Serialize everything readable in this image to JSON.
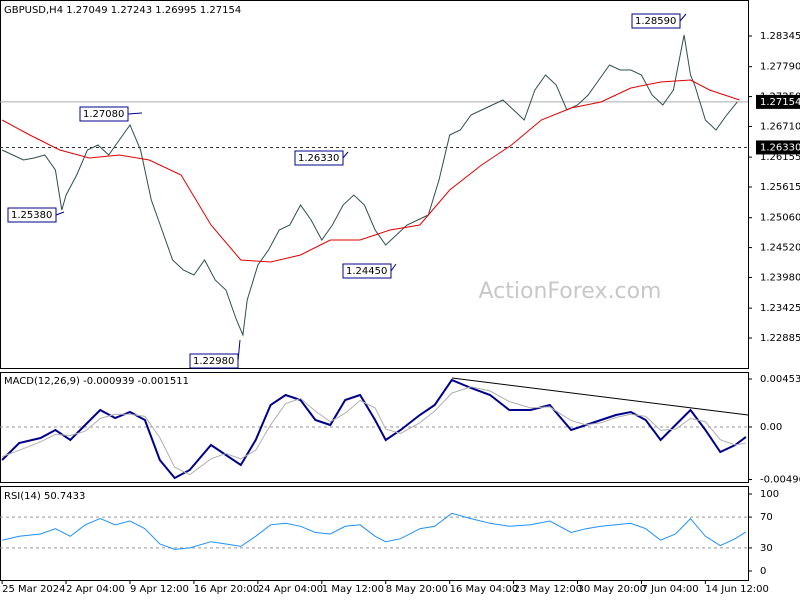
{
  "chart_data": [
    {
      "type": "line",
      "title": "GBPUSD,H4  1.27049 1.27243 1.26995 1.27154",
      "watermark": "ActionForex.com",
      "xlim": [
        -1,
        350
      ],
      "ylim": [
        1.22343,
        1.28996
      ],
      "yticks": [
        {
          "value": 1.28345,
          "label": "1.28345"
        },
        {
          "value": 1.2779,
          "label": "1.27790"
        },
        {
          "value": 1.2725,
          "label": "1.27250"
        },
        {
          "value": 1.2671,
          "label": "1.26710"
        },
        {
          "value": 1.26155,
          "label": "1.26155"
        },
        {
          "value": 1.25615,
          "label": "1.25615"
        },
        {
          "value": 1.2506,
          "label": "1.25060"
        },
        {
          "value": 1.2452,
          "label": "1.24520"
        },
        {
          "value": 1.2398,
          "label": "1.23980"
        },
        {
          "value": 1.23425,
          "label": "1.23425"
        },
        {
          "value": 1.22885,
          "label": "1.22885"
        }
      ],
      "price_lines": [
        {
          "value": 1.27154,
          "label": "1.27154",
          "style": "solid"
        },
        {
          "value": 1.2633,
          "label": "1.26330",
          "style": "dashed"
        }
      ],
      "annotations": [
        "1.28590",
        "1.27080",
        "1.26330",
        "1.25380",
        "1.24450",
        "1.22980"
      ],
      "series": [
        {
          "name": "GBPUSD",
          "color": "#2f4f4f",
          "x": [
            0,
            5,
            10,
            15,
            20,
            25,
            28,
            30,
            35,
            40,
            45,
            50,
            55,
            60,
            65,
            70,
            75,
            80,
            85,
            90,
            95,
            100,
            105,
            110,
            113,
            115,
            120,
            125,
            130,
            135,
            140,
            145,
            150,
            155,
            160,
            165,
            170,
            175,
            180,
            185,
            190,
            195,
            200,
            205,
            210,
            215,
            220,
            225,
            230,
            235,
            240,
            245,
            250,
            255,
            260,
            265,
            270,
            275,
            280,
            285,
            290,
            295,
            300,
            305,
            310,
            315,
            320,
            323,
            325,
            330,
            335,
            340,
            345
          ],
          "values": [
            1.26284,
            1.26194,
            1.26103,
            1.26139,
            1.26194,
            1.25922,
            1.25199,
            1.2547,
            1.25832,
            1.26284,
            1.26374,
            1.26194,
            1.26465,
            1.26736,
            1.26284,
            1.2538,
            1.24838,
            1.24295,
            1.24115,
            1.24024,
            1.24295,
            1.23934,
            1.23753,
            1.2321,
            1.22939,
            1.23572,
            1.24205,
            1.24476,
            1.24838,
            1.24928,
            1.2529,
            1.25018,
            1.24657,
            1.24928,
            1.2529,
            1.2547,
            1.2529,
            1.24838,
            1.24566,
            1.24747,
            1.24928,
            1.25018,
            1.25109,
            1.25742,
            1.26555,
            1.26646,
            1.26917,
            1.27007,
            1.27098,
            1.27188,
            1.27007,
            1.26826,
            1.27369,
            1.2764,
            1.27459,
            1.27007,
            1.27098,
            1.27278,
            1.2755,
            1.27821,
            1.27731,
            1.27731,
            1.2764,
            1.27278,
            1.27098,
            1.27369,
            1.28363,
            1.2764,
            1.27459,
            1.26826,
            1.26646,
            1.26917,
            1.27154
          ]
        },
        {
          "name": "MA",
          "color": "#e00000",
          "x": [
            0,
            13,
            27,
            41,
            55,
            69,
            84,
            98,
            112,
            126,
            140,
            154,
            168,
            182,
            196,
            210,
            225,
            239,
            253,
            267,
            281,
            295,
            309,
            323,
            332,
            346
          ],
          "values": [
            1.26826,
            1.26555,
            1.26284,
            1.26139,
            1.26194,
            1.26103,
            1.25832,
            1.24928,
            1.24295,
            1.24259,
            1.24386,
            1.24657,
            1.24657,
            1.24838,
            1.24928,
            1.25561,
            1.26013,
            1.26374,
            1.26826,
            1.27043,
            1.27152,
            1.27405,
            1.27514,
            1.2755,
            1.27369,
            1.27188
          ]
        }
      ]
    },
    {
      "type": "line",
      "title": "MACD(12,26,9) -0.000939 -0.001511",
      "xlim": [
        -1,
        350
      ],
      "ylim": [
        -0.005194,
        0.005194
      ],
      "yticks": [
        0.004533,
        {
          "value": 0,
          "label": "0.00"
        },
        -0.00496
      ],
      "dashed_levels": [
        0
      ],
      "series": [
        {
          "name": "MACD",
          "color": "#00008b",
          "width": 2,
          "x": [
            0,
            8,
            18,
            25,
            32,
            39,
            46,
            53,
            60,
            67,
            74,
            81,
            88,
            98,
            105,
            112,
            119,
            126,
            133,
            140,
            147,
            154,
            161,
            168,
            175,
            180,
            187,
            196,
            203,
            211,
            220,
            229,
            238,
            248,
            257,
            267,
            274,
            281,
            288,
            295,
            302,
            309,
            316,
            323,
            330,
            337,
            344,
            349
          ],
          "values": [
            -0.00312,
            -0.00151,
            -0.00104,
            -0.00028,
            -0.00123,
            0.00019,
            0.00161,
            0.00085,
            0.00142,
            0.00066,
            -0.00312,
            -0.00482,
            -0.00406,
            -0.0017,
            -0.00264,
            -0.00359,
            -0.00123,
            0.00208,
            0.00302,
            0.00255,
            0.00066,
            0.00019,
            0.00255,
            0.00302,
            0.00066,
            -0.00123,
            -0.00028,
            0.00113,
            0.00208,
            0.00444,
            0.00368,
            0.00302,
            0.00161,
            0.00161,
            0.00208,
            -0.00028,
            0.00019,
            0.00066,
            0.00113,
            0.00142,
            0.00066,
            -0.00123,
            0.00019,
            0.00161,
            -0.00028,
            -0.00236,
            -0.0017,
            -0.000939
          ]
        },
        {
          "name": "Signal",
          "color": "#b0b0b0",
          "width": 1,
          "x": [
            0,
            8,
            18,
            25,
            32,
            39,
            46,
            53,
            60,
            67,
            74,
            81,
            88,
            98,
            105,
            112,
            119,
            126,
            133,
            140,
            147,
            154,
            161,
            168,
            175,
            180,
            187,
            196,
            203,
            211,
            220,
            229,
            238,
            248,
            257,
            267,
            274,
            281,
            288,
            295,
            302,
            309,
            316,
            323,
            330,
            337,
            344,
            349
          ],
          "values": [
            -0.0028,
            -0.0022,
            -0.0014,
            -0.0007,
            -0.0008,
            -0.0004,
            0.0008,
            0.0012,
            0.0012,
            0.001,
            -0.001,
            -0.0038,
            -0.0045,
            -0.003,
            -0.0025,
            -0.003,
            -0.0022,
            0.0002,
            0.0022,
            0.0027,
            0.0015,
            0.0005,
            0.0013,
            0.0025,
            0.0018,
            -0.0002,
            -0.0006,
            0.0004,
            0.0015,
            0.0032,
            0.0038,
            0.0034,
            0.0024,
            0.0018,
            0.0019,
            0.0006,
            0.0002,
            0.0004,
            0.0009,
            0.0012,
            0.001,
            -0.0003,
            -0.0002,
            0.0008,
            0.0005,
            -0.0012,
            -0.0017,
            -0.001511
          ]
        }
      ]
    },
    {
      "type": "line",
      "title": "RSI(14) 50.7433",
      "xlim": [
        -1,
        350
      ],
      "ylim": [
        -11.7,
        110.4
      ],
      "yticks": [
        100,
        70,
        30,
        0
      ],
      "dashed_levels": [
        70,
        30
      ],
      "xticks": [
        {
          "value": 0,
          "label": "25 Mar 2024"
        },
        {
          "value": 30,
          "label": "2 Apr 04:00"
        },
        {
          "value": 60,
          "label": "9 Apr 12:00"
        },
        {
          "value": 90,
          "label": "16 Apr 20:00"
        },
        {
          "value": 120,
          "label": "24 Apr 04:00"
        },
        {
          "value": 150,
          "label": "1 May 12:00"
        },
        {
          "value": 180,
          "label": "8 May 20:00"
        },
        {
          "value": 210,
          "label": "16 May 04:00"
        },
        {
          "value": 240,
          "label": "23 May 12:00"
        },
        {
          "value": 270,
          "label": "30 May 20:00"
        },
        {
          "value": 300,
          "label": "7 Jun 04:00"
        },
        {
          "value": 330,
          "label": "14 Jun 12:00"
        }
      ],
      "series": [
        {
          "name": "RSI",
          "color": "#1e90ff",
          "width": 1,
          "x": [
            0,
            8,
            18,
            25,
            32,
            39,
            46,
            53,
            60,
            67,
            74,
            81,
            88,
            98,
            105,
            112,
            119,
            126,
            133,
            140,
            147,
            154,
            161,
            168,
            175,
            180,
            187,
            196,
            203,
            211,
            220,
            229,
            238,
            248,
            257,
            267,
            274,
            281,
            288,
            295,
            302,
            309,
            316,
            323,
            330,
            337,
            344,
            349
          ],
          "values": [
            40,
            45,
            48,
            55,
            45,
            60,
            68,
            60,
            65,
            55,
            35,
            28,
            30,
            38,
            35,
            32,
            45,
            60,
            62,
            58,
            50,
            48,
            58,
            60,
            45,
            38,
            42,
            55,
            58,
            75,
            68,
            62,
            58,
            60,
            65,
            50,
            55,
            58,
            60,
            62,
            55,
            40,
            48,
            68,
            45,
            33,
            42,
            50.7433
          ]
        }
      ]
    }
  ]
}
